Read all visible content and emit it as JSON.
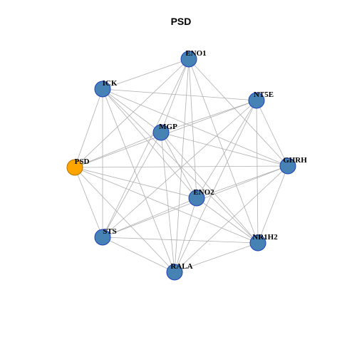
{
  "title": "PSD",
  "nodes": [
    {
      "label": "ENO1"
    },
    {
      "label": "ICK"
    },
    {
      "label": "NT5E"
    },
    {
      "label": "MGP"
    },
    {
      "label": "PSD"
    },
    {
      "label": "GHRH"
    },
    {
      "label": "ENO2"
    },
    {
      "label": "STS"
    },
    {
      "label": "NR1H2"
    },
    {
      "label": "RALA"
    }
  ]
}
